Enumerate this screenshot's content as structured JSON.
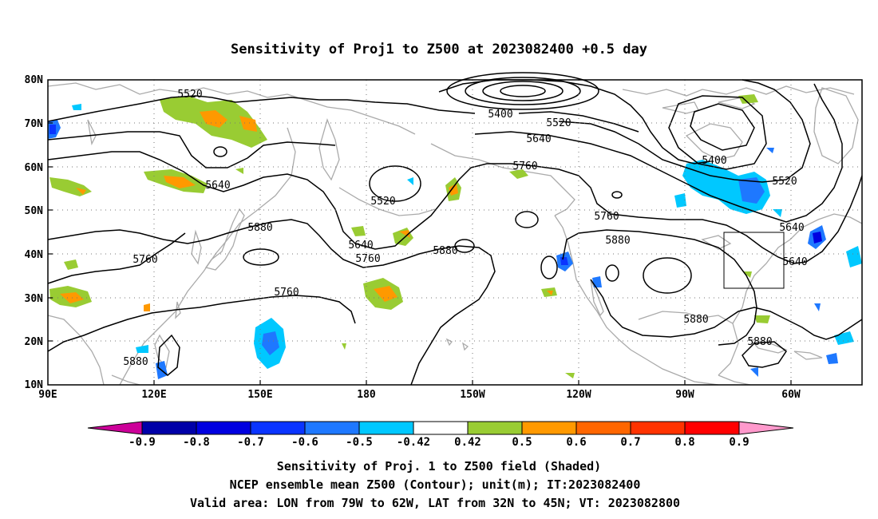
{
  "title": "Sensitivity of Proj1 to Z500 at 2023082400 +0.5 day",
  "lat_ticks": [
    "80N",
    "70N",
    "60N",
    "50N",
    "40N",
    "30N",
    "20N",
    "10N"
  ],
  "lon_ticks": [
    "90E",
    "120E",
    "150E",
    "180",
    "150W",
    "120W",
    "90W",
    "60W"
  ],
  "contour_labels": [
    "5520",
    "5400",
    "5520",
    "5640",
    "5760",
    "5400",
    "5520",
    "5640",
    "5520",
    "5640",
    "5880",
    "5640",
    "5760",
    "5880",
    "5760",
    "5760",
    "5880",
    "5640",
    "5760",
    "5880",
    "5880",
    "5880",
    "5880"
  ],
  "colorbar": {
    "labels": [
      "-0.9",
      "-0.8",
      "-0.7",
      "-0.6",
      "-0.5",
      "-0.42",
      "0.42",
      "0.5",
      "0.6",
      "0.7",
      "0.8",
      "0.9"
    ],
    "colors": [
      "#0000a8",
      "#0000e0",
      "#0a34ff",
      "#1e78ff",
      "#00c8ff",
      "#ffffff",
      "#99cc33",
      "#ff9900",
      "#ff6600",
      "#ff3300",
      "#ff0000"
    ],
    "low_color": "#cc0099",
    "high_color": "#ff99cc"
  },
  "captions": [
    "Sensitivity of Proj. 1 to Z500 field (Shaded)",
    "NCEP ensemble mean Z500 (Contour); unit(m); IT:2023082400",
    "Valid area: LON from 79W to 62W, LAT from 32N to 45N; VT: 2023082800"
  ]
}
